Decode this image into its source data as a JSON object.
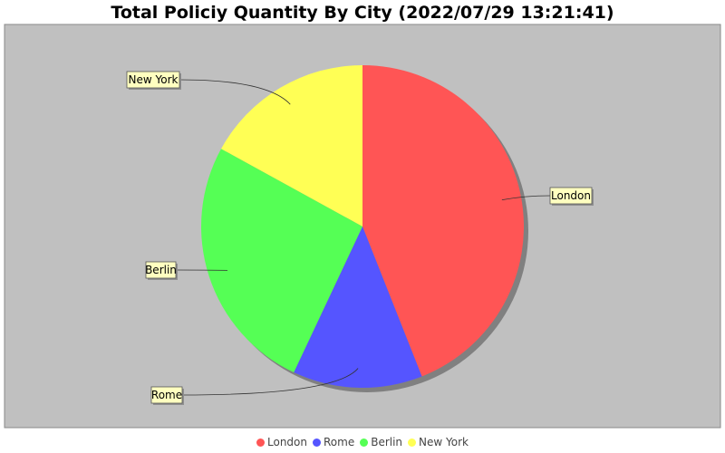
{
  "chart_data": {
    "type": "pie",
    "title": "Total Policiy Quantity By City (2022/07/29 13:21:41)",
    "categories": [
      "London",
      "Rome",
      "Berlin",
      "New York"
    ],
    "values": [
      44,
      13,
      26,
      17
    ],
    "colors": [
      "#ff5555",
      "#5555ff",
      "#55ff55",
      "#ffff55"
    ],
    "legend_position": "bottom",
    "background_color": "#c0c0c0"
  }
}
